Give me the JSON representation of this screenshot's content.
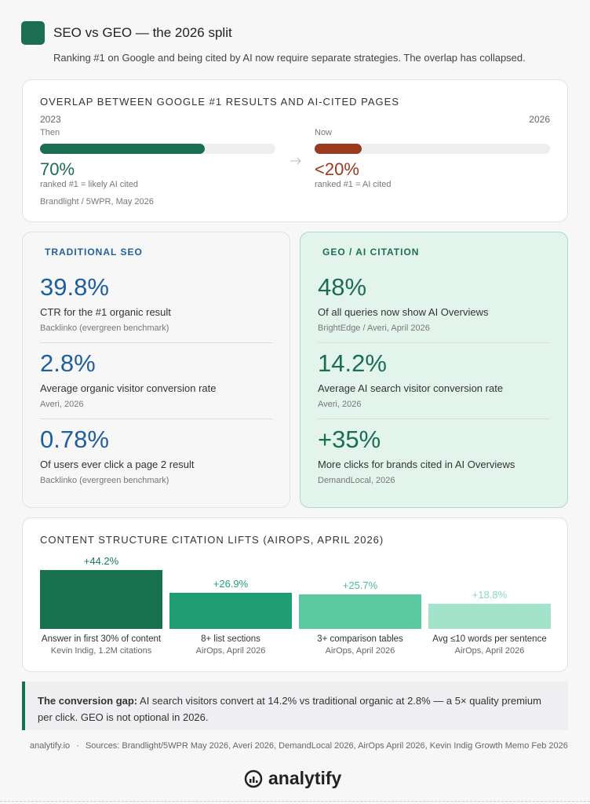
{
  "header": {
    "title": "SEO vs GEO — the 2026 split",
    "subtitle": "Ranking #1 on Google and being cited by AI now require separate strategies. The overlap has collapsed."
  },
  "overlap": {
    "heading": "OVERLAP BETWEEN GOOGLE #1 RESULTS AND AI-CITED PAGES",
    "then": {
      "year": "2023",
      "label": "Then",
      "value": 70,
      "value_label": "70%",
      "caption": "ranked #1 = likely AI cited"
    },
    "now": {
      "year": "2026",
      "label": "Now",
      "value": 20,
      "value_label": "<20%",
      "caption": "ranked #1 = AI cited"
    },
    "source": "Brandlight / 5WPR, May 2026"
  },
  "seo": {
    "heading": "TRADITIONAL SEO",
    "stats": [
      {
        "value": "39.8%",
        "description": "CTR for the #1 organic result",
        "source": "Backlinko (evergreen benchmark)"
      },
      {
        "value": "2.8%",
        "description": "Average organic visitor conversion rate",
        "source": "Averi, 2026"
      },
      {
        "value": "0.78%",
        "description": "Of users ever click a page 2 result",
        "source": "Backlinko (evergreen benchmark)"
      }
    ]
  },
  "geo": {
    "heading": "GEO / AI CITATION",
    "stats": [
      {
        "value": "48%",
        "description": "Of all queries now show AI Overviews",
        "source": "BrightEdge / Averi, April 2026"
      },
      {
        "value": "14.2%",
        "description": "Average AI search visitor conversion rate",
        "source": "Averi, 2026"
      },
      {
        "value": "+35%",
        "description": "More clicks for brands cited in AI Overviews",
        "source": "DemandLocal, 2026"
      }
    ]
  },
  "lifts": {
    "title": "CONTENT STRUCTURE CITATION LIFTS (AIROPS, APRIL 2026)",
    "bars": [
      {
        "value": 44.2,
        "value_label": "+44.2%",
        "name": "Answer in first 30% of content",
        "source": "Kevin Indig, 1.2M citations",
        "color": "#17714f"
      },
      {
        "value": 26.9,
        "value_label": "+26.9%",
        "name": "8+ list sections",
        "source": "AirOps, April 2026",
        "color": "#1f9e73"
      },
      {
        "value": 25.7,
        "value_label": "+25.7%",
        "name": "3+ comparison tables",
        "source": "AirOps, April 2026",
        "color": "#5ccaa0"
      },
      {
        "value": 18.8,
        "value_label": "+18.8%",
        "name": "Avg ≤10 words per sentence",
        "source": "AirOps, April 2026",
        "color": "#a3e2cb"
      }
    ]
  },
  "callout": {
    "lead": "The conversion gap:",
    "text": " AI search visitors convert at 14.2% vs traditional organic at 2.8% — a 5× quality premium per click. GEO is not optional in 2026."
  },
  "footer": {
    "site": "analytify.io",
    "separator": "·",
    "sources": "Sources: Brandlight/5WPR May 2026, Averi 2026, DemandLocal 2026, AirOps April 2026, Kevin Indig Growth Memo Feb 2026",
    "brand": "analytify"
  }
}
